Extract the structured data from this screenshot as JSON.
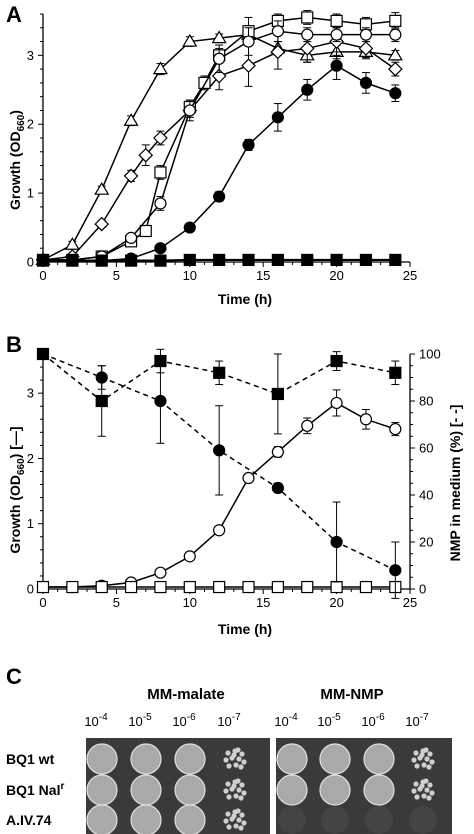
{
  "chart_data": [
    {
      "panel": "A",
      "type": "line",
      "xlabel": "Time (h)",
      "ylabel": "Growth (OD660)",
      "ylabel_main": "Growth (OD",
      "ylabel_sub": "660",
      "ylabel_tail": ")",
      "xlim": [
        0,
        25
      ],
      "ylim": [
        0,
        3.6
      ],
      "xticks": [
        0,
        5,
        10,
        15,
        20,
        25
      ],
      "yticks": [
        0,
        1,
        2,
        3
      ],
      "grid": false,
      "series": [
        {
          "marker": "triangle-open",
          "x": [
            0,
            2,
            4,
            6,
            8,
            10,
            12,
            14,
            16,
            18,
            20,
            22,
            24
          ],
          "y": [
            0.03,
            0.25,
            1.05,
            2.05,
            2.8,
            3.2,
            3.25,
            3.3,
            3.1,
            3.0,
            3.05,
            3.05,
            3.0
          ],
          "err": [
            0,
            0.05,
            0.05,
            0.07,
            0.08,
            0.07,
            0.06,
            0.07,
            0.1,
            0.1,
            0.1,
            0.08,
            0.07
          ]
        },
        {
          "marker": "diamond-open",
          "x": [
            0,
            2,
            4,
            6,
            7,
            8,
            10,
            12,
            14,
            16,
            18,
            20,
            22,
            24
          ],
          "y": [
            0.03,
            0.08,
            0.55,
            1.25,
            1.55,
            1.8,
            2.2,
            2.7,
            2.85,
            3.05,
            3.1,
            3.2,
            3.1,
            2.8
          ],
          "err": [
            0,
            0.02,
            0.05,
            0.08,
            0.15,
            0.1,
            0.1,
            0.2,
            0.3,
            0.25,
            0.2,
            0.2,
            0.15,
            0.1
          ]
        },
        {
          "marker": "square-open",
          "x": [
            0,
            2,
            4,
            6,
            7,
            8,
            10,
            11,
            12,
            14,
            16,
            18,
            20,
            22,
            24
          ],
          "y": [
            0.03,
            0.03,
            0.08,
            0.3,
            0.45,
            1.3,
            2.25,
            2.6,
            3.0,
            3.35,
            3.5,
            3.55,
            3.5,
            3.45,
            3.5
          ],
          "err": [
            0,
            0,
            0.02,
            0.05,
            0.05,
            0.1,
            0.1,
            0.1,
            0.1,
            0.2,
            0.1,
            0.1,
            0.1,
            0.1,
            0.12
          ]
        },
        {
          "marker": "circle-open",
          "x": [
            0,
            2,
            4,
            6,
            8,
            10,
            12,
            14,
            16,
            18,
            20,
            22,
            24
          ],
          "y": [
            0.03,
            0.03,
            0.08,
            0.35,
            0.85,
            2.2,
            2.95,
            3.2,
            3.35,
            3.3,
            3.3,
            3.3,
            3.3
          ],
          "err": [
            0,
            0,
            0.02,
            0.05,
            0.1,
            0.15,
            0.2,
            0.2,
            0.15,
            0.1,
            0.1,
            0.1,
            0.1
          ]
        },
        {
          "marker": "circle-filled",
          "x": [
            0,
            2,
            4,
            6,
            8,
            10,
            12,
            14,
            16,
            18,
            20,
            22,
            24
          ],
          "y": [
            0.02,
            0.02,
            0.02,
            0.05,
            0.2,
            0.5,
            0.95,
            1.7,
            2.1,
            2.5,
            2.85,
            2.6,
            2.45
          ],
          "err": [
            0,
            0,
            0,
            0.02,
            0.03,
            0.05,
            0.07,
            0.08,
            0.2,
            0.15,
            0.2,
            0.15,
            0.12
          ]
        },
        {
          "marker": "square-filled",
          "x": [
            0,
            2,
            4,
            6,
            8,
            10,
            12,
            14,
            16,
            18,
            20,
            22,
            24
          ],
          "y": [
            0.02,
            0.02,
            0.02,
            0.02,
            0.02,
            0.03,
            0.03,
            0.03,
            0.03,
            0.03,
            0.03,
            0.03,
            0.03
          ],
          "err": [
            0,
            0,
            0,
            0,
            0,
            0,
            0,
            0,
            0,
            0,
            0,
            0,
            0
          ]
        }
      ]
    },
    {
      "panel": "B",
      "type": "line",
      "xlabel": "Time (h)",
      "ylabel": "Growth (OD660) [—]",
      "ylabel_main": "Growth (OD",
      "ylabel_sub": "660",
      "ylabel_tail": ") [—]",
      "y2label": "NMP in medium (%) [- -]",
      "xlim": [
        0,
        25
      ],
      "ylim": [
        0,
        3.6
      ],
      "y2lim": [
        0,
        100
      ],
      "xticks": [
        0,
        5,
        10,
        15,
        20,
        25
      ],
      "yticks": [
        0,
        1,
        2,
        3
      ],
      "y2ticks": [
        0,
        20,
        40,
        60,
        80,
        100
      ],
      "grid": false,
      "series": [
        {
          "marker": "circle-open",
          "axis": "left",
          "dash": false,
          "x": [
            0,
            2,
            4,
            6,
            8,
            10,
            12,
            14,
            16,
            18,
            20,
            22,
            24
          ],
          "y": [
            0.03,
            0.03,
            0.05,
            0.1,
            0.25,
            0.5,
            0.9,
            1.7,
            2.1,
            2.5,
            2.85,
            2.6,
            2.45
          ],
          "err": [
            0,
            0,
            0,
            0.02,
            0.03,
            0.04,
            0.05,
            0.06,
            0.08,
            0.12,
            0.2,
            0.15,
            0.1
          ]
        },
        {
          "marker": "square-open",
          "axis": "left",
          "dash": false,
          "x": [
            0,
            2,
            4,
            6,
            8,
            10,
            12,
            14,
            16,
            18,
            20,
            22,
            24
          ],
          "y": [
            0.03,
            0.03,
            0.03,
            0.03,
            0.03,
            0.03,
            0.03,
            0.03,
            0.03,
            0.03,
            0.03,
            0.03,
            0.03
          ],
          "err": [
            0,
            0,
            0,
            0,
            0,
            0,
            0,
            0,
            0,
            0,
            0,
            0,
            0
          ]
        },
        {
          "marker": "square-filled",
          "axis": "right",
          "dash": true,
          "x": [
            0,
            4,
            8,
            12,
            16,
            20,
            24
          ],
          "y": [
            100,
            80,
            97,
            92,
            83,
            97,
            92
          ],
          "err": [
            0,
            15,
            5,
            5,
            17,
            4,
            5
          ]
        },
        {
          "marker": "circle-filled",
          "axis": "right",
          "dash": true,
          "x": [
            0,
            4,
            8,
            12,
            16,
            20,
            24
          ],
          "y": [
            100,
            90,
            80,
            59,
            43,
            20,
            8
          ],
          "err": [
            0,
            5,
            18,
            19,
            2,
            17,
            12
          ]
        }
      ]
    }
  ],
  "panels": {
    "a": "A",
    "b": "B",
    "c": "C"
  },
  "spot_assay": {
    "media": [
      "MM-malate",
      "MM-NMP"
    ],
    "dilutions": [
      "10-4",
      "10-5",
      "10-6",
      "10-7"
    ],
    "dilution_base": "10",
    "dilution_exponents": [
      "-4",
      "-5",
      "-6",
      "-7"
    ],
    "strains": [
      {
        "name": "BQ1 wt",
        "main": "BQ1 wt",
        "sup": ""
      },
      {
        "name": "BQ1 Nalr",
        "main": "BQ1 Nal",
        "sup": "r"
      },
      {
        "name": "A.IV.74",
        "main": "A.IV.74",
        "sup": ""
      }
    ],
    "colors": {
      "plate": "#3a3a3a",
      "spot_light": "#bdbdbd",
      "spot_dense": "#cfcfcf"
    }
  }
}
